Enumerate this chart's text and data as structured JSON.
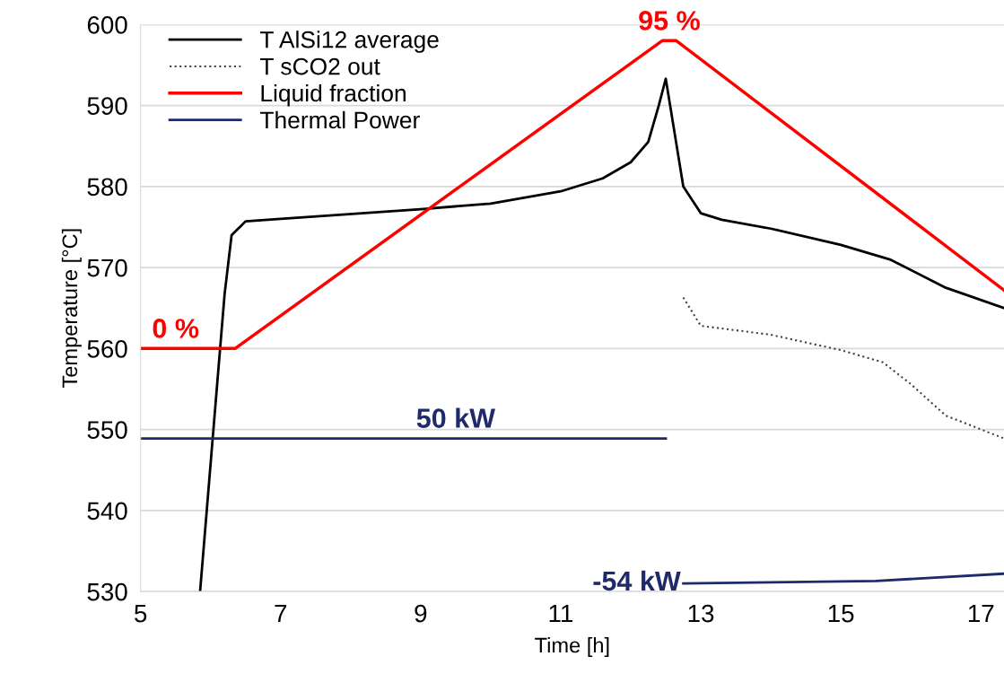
{
  "chart_data": {
    "type": "line",
    "xlabel": "Time [h]",
    "ylabel": "Temperature [°C]",
    "xlim": [
      5,
      17.33
    ],
    "xticks": [
      5,
      7,
      9,
      11,
      13,
      15,
      17
    ],
    "ylim": [
      530,
      600
    ],
    "yticks": [
      530,
      540,
      550,
      560,
      570,
      580,
      590,
      600
    ],
    "grid": "y",
    "legend": "top left",
    "marker": "none",
    "series": [
      {
        "name": "T AlSi12 average",
        "color": "#000000",
        "line_style": "solid",
        "x": [
          5.85,
          6.05,
          6.2,
          6.3,
          6.5,
          7,
          9,
          10,
          11,
          11.6,
          12,
          12.25,
          12.4,
          12.5,
          12.6,
          12.75,
          13,
          13.3,
          14,
          15,
          15.7,
          16.5,
          17.33
        ],
        "values": [
          530,
          551,
          566.7,
          574,
          575.7,
          576,
          577.2,
          577.9,
          579.4,
          581,
          583,
          585.5,
          590,
          593.3,
          588,
          580,
          576.7,
          575.9,
          574.8,
          572.8,
          571,
          567.5,
          565
        ]
      },
      {
        "name": "T sCO2 out",
        "color": "#404040",
        "line_style": "dotted",
        "x": [
          12.75,
          13,
          14,
          15,
          15.6,
          16,
          16.5,
          17.33
        ],
        "values": [
          566.3,
          562.8,
          561.7,
          559.8,
          558.3,
          555.6,
          551.7,
          548.9
        ]
      },
      {
        "name": "Liquid fraction",
        "color": "#ff0000",
        "line_style": "solid",
        "x": [
          5,
          6.35,
          12.45,
          12.65,
          17.33
        ],
        "values": [
          560,
          560,
          598,
          598,
          567.2
        ]
      },
      {
        "name": "Thermal Power",
        "color": "#1f2a6b",
        "line_style": "solid",
        "x": [
          5,
          12.5,
          null,
          12.75,
          15.5,
          17.33
        ],
        "values": [
          548.9,
          548.9,
          null,
          531,
          531.3,
          532.2
        ]
      }
    ],
    "annotations": [
      {
        "text": "95 %",
        "x": 12.55,
        "y": 598
      },
      {
        "text": "0 %",
        "x": 5.5,
        "y": 560
      },
      {
        "text": "50 kW",
        "x": 9.5,
        "y": 548.9
      },
      {
        "text": "-54 kW",
        "x": 12.75,
        "y": 531
      }
    ]
  }
}
